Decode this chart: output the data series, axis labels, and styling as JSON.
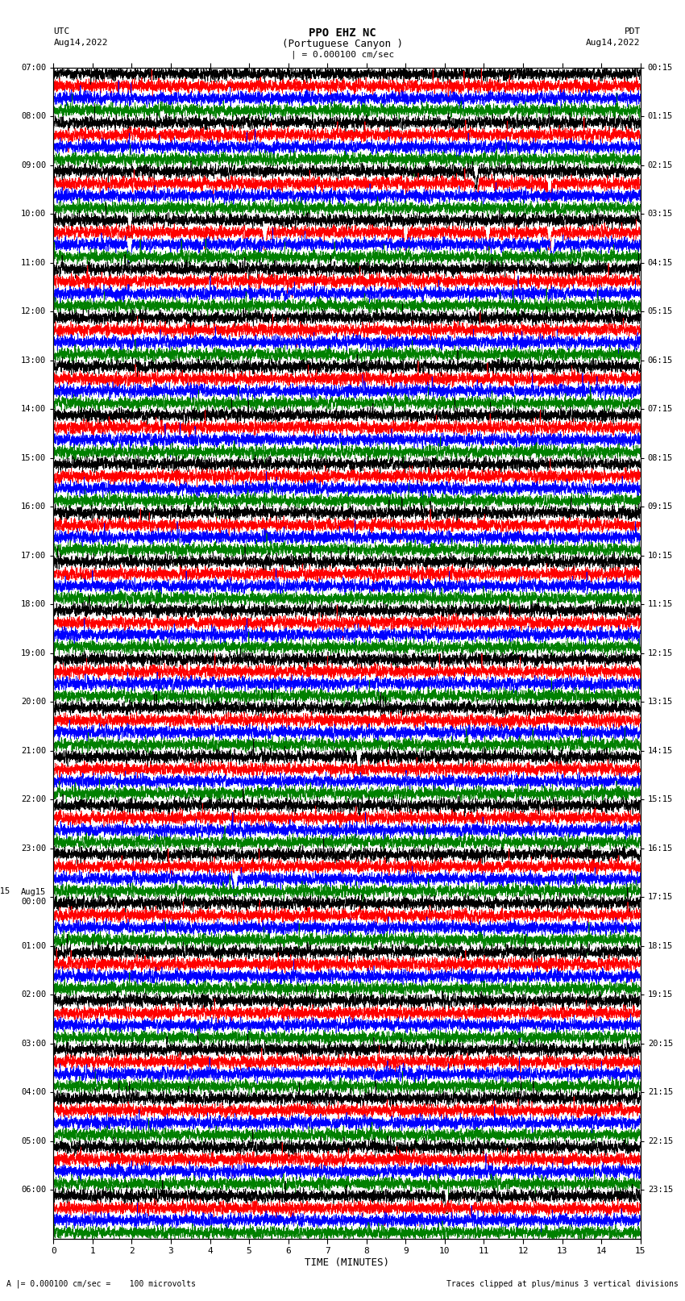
{
  "title_line1": "PPO EHZ NC",
  "title_line2": "(Portuguese Canyon )",
  "scale_label": "| = 0.000100 cm/sec",
  "left_header": "UTC",
  "right_header": "PDT",
  "left_date": "Aug14,2022",
  "right_date": "Aug14,2022",
  "xlabel": "TIME (MINUTES)",
  "bottom_left": "A |= 0.000100 cm/sec =    100 microvolts",
  "bottom_right": "Traces clipped at plus/minus 3 vertical divisions",
  "xlim": [
    0,
    15
  ],
  "xticks": [
    0,
    1,
    2,
    3,
    4,
    5,
    6,
    7,
    8,
    9,
    10,
    11,
    12,
    13,
    14,
    15
  ],
  "trace_colors": [
    "black",
    "red",
    "blue",
    "green"
  ],
  "background_color": "#ffffff",
  "utc_labels": [
    "07:00",
    "08:00",
    "09:00",
    "10:00",
    "11:00",
    "12:00",
    "13:00",
    "14:00",
    "15:00",
    "16:00",
    "17:00",
    "18:00",
    "19:00",
    "20:00",
    "21:00",
    "22:00",
    "23:00",
    "Aug15\n00:00",
    "01:00",
    "02:00",
    "03:00",
    "04:00",
    "05:00",
    "06:00"
  ],
  "pdt_labels": [
    "00:15",
    "01:15",
    "02:15",
    "03:15",
    "04:15",
    "05:15",
    "06:15",
    "07:15",
    "08:15",
    "09:15",
    "10:15",
    "11:15",
    "12:15",
    "13:15",
    "14:15",
    "15:15",
    "16:15",
    "17:15",
    "18:15",
    "19:15",
    "20:15",
    "21:15",
    "22:15",
    "23:15"
  ]
}
